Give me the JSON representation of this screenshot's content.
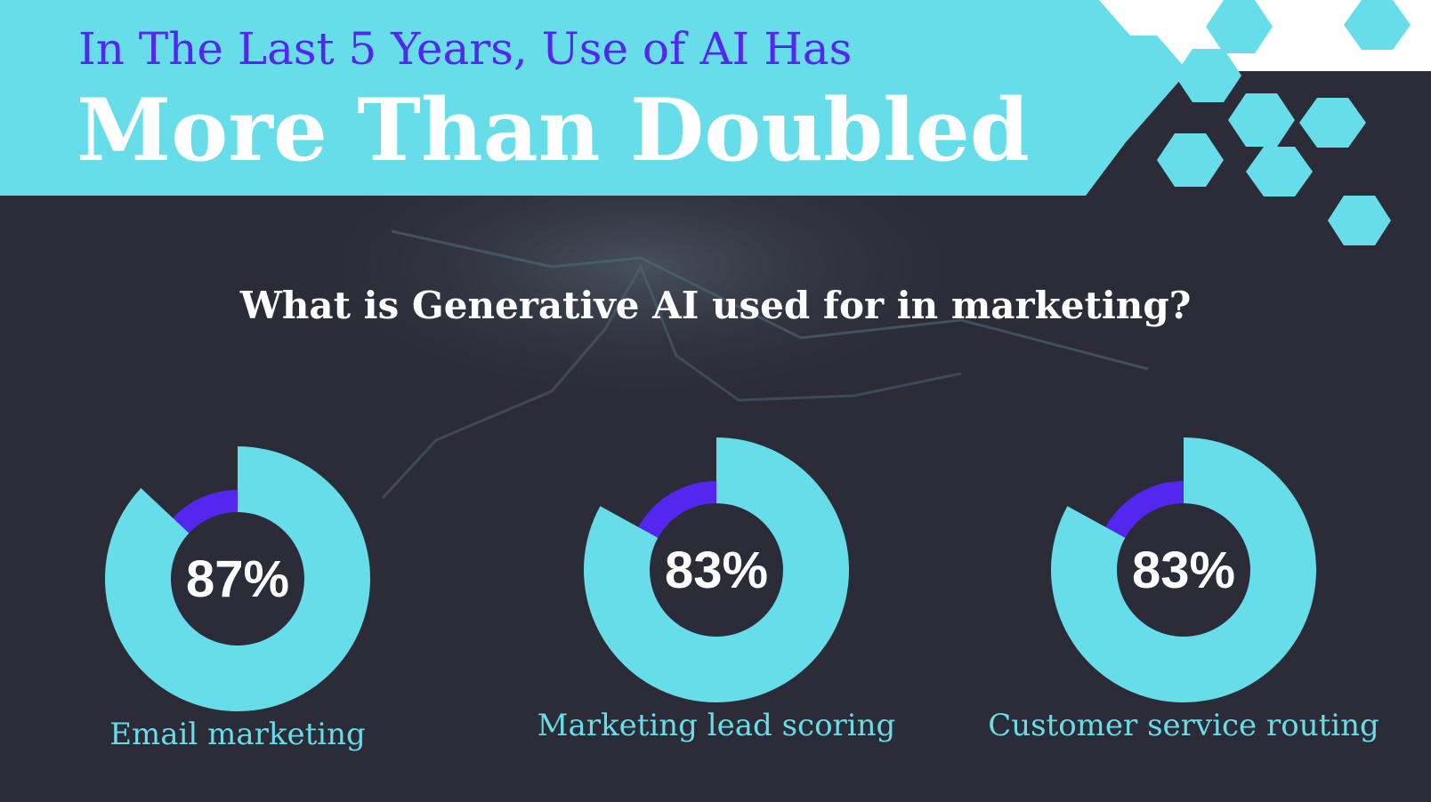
{
  "header": {
    "title": "In The Last 5 Years, Use of AI Has",
    "headline": "More Than Doubled"
  },
  "subtitle": "What is Generative AI used for in marketing?",
  "chart_data": [
    {
      "type": "donut",
      "categories": [
        "Email marketing"
      ],
      "values": [
        87
      ],
      "value_labels": [
        "87%"
      ],
      "color": "#66dde8",
      "rest_color": "#5427f0"
    },
    {
      "type": "donut",
      "categories": [
        "Marketing lead scoring"
      ],
      "values": [
        83
      ],
      "value_labels": [
        "83%"
      ],
      "color": "#66dde8",
      "rest_color": "#5427f0"
    },
    {
      "type": "donut",
      "categories": [
        "Customer service routing"
      ],
      "values": [
        83
      ],
      "value_labels": [
        "83%"
      ],
      "color": "#66dde8",
      "rest_color": "#5427f0"
    }
  ]
}
